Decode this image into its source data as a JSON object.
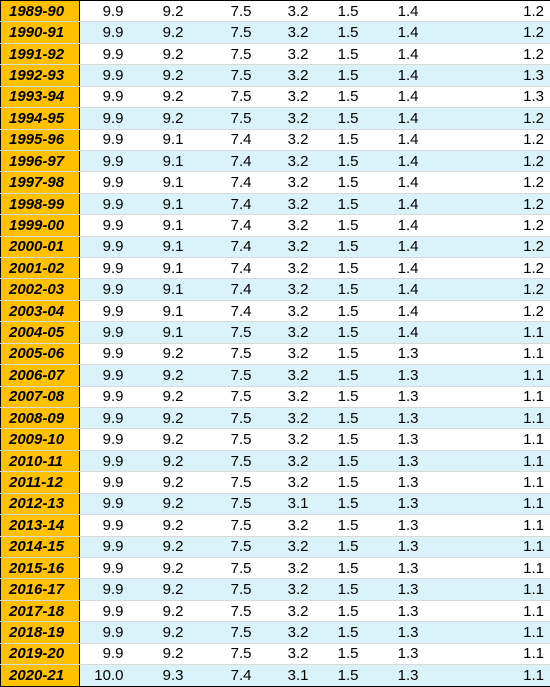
{
  "colors": {
    "year_bg": "#ffc000",
    "stripe_bg": "#daf3fb",
    "white_bg": "#ffffff"
  },
  "rows": [
    {
      "year": "1989-90",
      "values": [
        "9.9",
        "9.2",
        "7.5",
        "3.2",
        "1.5",
        "1.4",
        "1.2"
      ]
    },
    {
      "year": "1990-91",
      "values": [
        "9.9",
        "9.2",
        "7.5",
        "3.2",
        "1.5",
        "1.4",
        "1.2"
      ]
    },
    {
      "year": "1991-92",
      "values": [
        "9.9",
        "9.2",
        "7.5",
        "3.2",
        "1.5",
        "1.4",
        "1.2"
      ]
    },
    {
      "year": "1992-93",
      "values": [
        "9.9",
        "9.2",
        "7.5",
        "3.2",
        "1.5",
        "1.4",
        "1.3"
      ]
    },
    {
      "year": "1993-94",
      "values": [
        "9.9",
        "9.2",
        "7.5",
        "3.2",
        "1.5",
        "1.4",
        "1.3"
      ]
    },
    {
      "year": "1994-95",
      "values": [
        "9.9",
        "9.2",
        "7.5",
        "3.2",
        "1.5",
        "1.4",
        "1.2"
      ]
    },
    {
      "year": "1995-96",
      "values": [
        "9.9",
        "9.1",
        "7.4",
        "3.2",
        "1.5",
        "1.4",
        "1.2"
      ]
    },
    {
      "year": "1996-97",
      "values": [
        "9.9",
        "9.1",
        "7.4",
        "3.2",
        "1.5",
        "1.4",
        "1.2"
      ]
    },
    {
      "year": "1997-98",
      "values": [
        "9.9",
        "9.1",
        "7.4",
        "3.2",
        "1.5",
        "1.4",
        "1.2"
      ]
    },
    {
      "year": "1998-99",
      "values": [
        "9.9",
        "9.1",
        "7.4",
        "3.2",
        "1.5",
        "1.4",
        "1.2"
      ]
    },
    {
      "year": "1999-00",
      "values": [
        "9.9",
        "9.1",
        "7.4",
        "3.2",
        "1.5",
        "1.4",
        "1.2"
      ]
    },
    {
      "year": "2000-01",
      "values": [
        "9.9",
        "9.1",
        "7.4",
        "3.2",
        "1.5",
        "1.4",
        "1.2"
      ]
    },
    {
      "year": "2001-02",
      "values": [
        "9.9",
        "9.1",
        "7.4",
        "3.2",
        "1.5",
        "1.4",
        "1.2"
      ]
    },
    {
      "year": "2002-03",
      "values": [
        "9.9",
        "9.1",
        "7.4",
        "3.2",
        "1.5",
        "1.4",
        "1.2"
      ]
    },
    {
      "year": "2003-04",
      "values": [
        "9.9",
        "9.1",
        "7.4",
        "3.2",
        "1.5",
        "1.4",
        "1.2"
      ]
    },
    {
      "year": "2004-05",
      "values": [
        "9.9",
        "9.1",
        "7.5",
        "3.2",
        "1.5",
        "1.4",
        "1.1"
      ]
    },
    {
      "year": "2005-06",
      "values": [
        "9.9",
        "9.2",
        "7.5",
        "3.2",
        "1.5",
        "1.3",
        "1.1"
      ]
    },
    {
      "year": "2006-07",
      "values": [
        "9.9",
        "9.2",
        "7.5",
        "3.2",
        "1.5",
        "1.3",
        "1.1"
      ]
    },
    {
      "year": "2007-08",
      "values": [
        "9.9",
        "9.2",
        "7.5",
        "3.2",
        "1.5",
        "1.3",
        "1.1"
      ]
    },
    {
      "year": "2008-09",
      "values": [
        "9.9",
        "9.2",
        "7.5",
        "3.2",
        "1.5",
        "1.3",
        "1.1"
      ]
    },
    {
      "year": "2009-10",
      "values": [
        "9.9",
        "9.2",
        "7.5",
        "3.2",
        "1.5",
        "1.3",
        "1.1"
      ]
    },
    {
      "year": "2010-11",
      "values": [
        "9.9",
        "9.2",
        "7.5",
        "3.2",
        "1.5",
        "1.3",
        "1.1"
      ]
    },
    {
      "year": "2011-12",
      "values": [
        "9.9",
        "9.2",
        "7.5",
        "3.2",
        "1.5",
        "1.3",
        "1.1"
      ]
    },
    {
      "year": "2012-13",
      "values": [
        "9.9",
        "9.2",
        "7.5",
        "3.1",
        "1.5",
        "1.3",
        "1.1"
      ]
    },
    {
      "year": "2013-14",
      "values": [
        "9.9",
        "9.2",
        "7.5",
        "3.2",
        "1.5",
        "1.3",
        "1.1"
      ]
    },
    {
      "year": "2014-15",
      "values": [
        "9.9",
        "9.2",
        "7.5",
        "3.2",
        "1.5",
        "1.3",
        "1.1"
      ]
    },
    {
      "year": "2015-16",
      "values": [
        "9.9",
        "9.2",
        "7.5",
        "3.2",
        "1.5",
        "1.3",
        "1.1"
      ]
    },
    {
      "year": "2016-17",
      "values": [
        "9.9",
        "9.2",
        "7.5",
        "3.2",
        "1.5",
        "1.3",
        "1.1"
      ]
    },
    {
      "year": "2017-18",
      "values": [
        "9.9",
        "9.2",
        "7.5",
        "3.2",
        "1.5",
        "1.3",
        "1.1"
      ]
    },
    {
      "year": "2018-19",
      "values": [
        "9.9",
        "9.2",
        "7.5",
        "3.2",
        "1.5",
        "1.3",
        "1.1"
      ]
    },
    {
      "year": "2019-20",
      "values": [
        "9.9",
        "9.2",
        "7.5",
        "3.2",
        "1.5",
        "1.3",
        "1.1"
      ]
    },
    {
      "year": "2020-21",
      "values": [
        "10.0",
        "9.3",
        "7.4",
        "3.1",
        "1.5",
        "1.3",
        "1.1"
      ]
    }
  ]
}
